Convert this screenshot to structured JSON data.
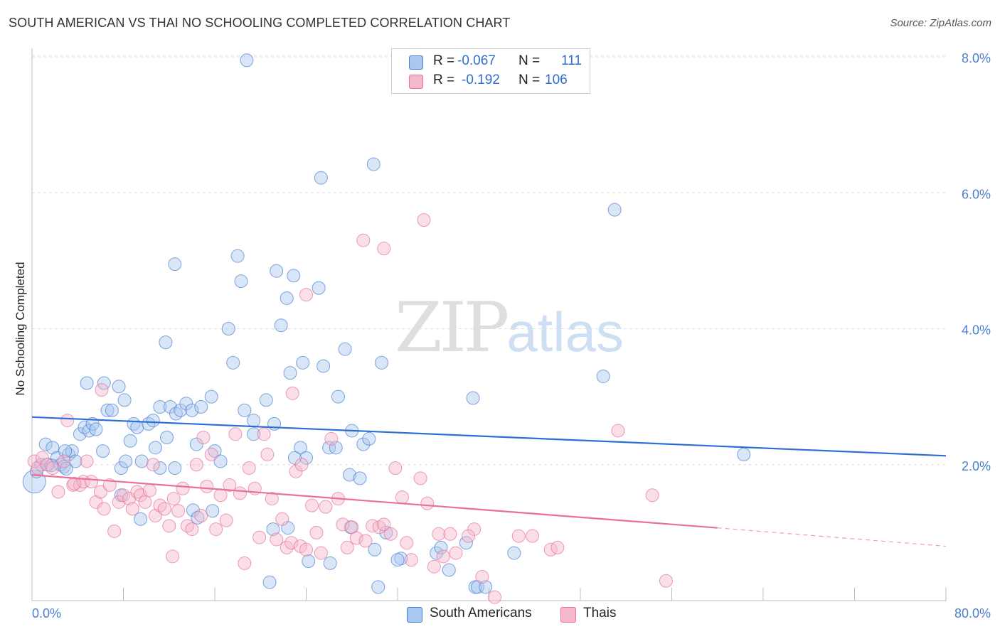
{
  "title": "SOUTH AMERICAN VS THAI NO SCHOOLING COMPLETED CORRELATION CHART",
  "source": "Source: ZipAtlas.com",
  "watermark": {
    "zip": "ZIP",
    "atlas": "atlas"
  },
  "colors": {
    "blue": "#4a7fd0",
    "blue_fill": "#a9c8ef",
    "blue_line": "#2d6fd0",
    "pink": "#e8709a",
    "pink_fill": "#f5b7cb",
    "pink_line": "#e8709a"
  },
  "legend": {
    "rows": [
      {
        "r_label": "R =",
        "r_value": "-0.067",
        "n_label": "N =",
        "n_value": "111"
      },
      {
        "r_label": "R =",
        "r_value": "-0.192",
        "n_label": "N =",
        "n_value": "106"
      }
    ]
  },
  "bottom_legend": {
    "blue": "South Americans",
    "pink": "Thais"
  },
  "chart_data": {
    "type": "scatter",
    "title": "SOUTH AMERICAN VS THAI NO SCHOOLING COMPLETED CORRELATION CHART",
    "xlabel": "",
    "ylabel": "No Schooling Completed",
    "xlim": [
      0,
      80
    ],
    "ylim": [
      0,
      8.0
    ],
    "x_tick_labels": [
      "0.0%",
      "80.0%"
    ],
    "y_ticks": [
      2.0,
      4.0,
      6.0,
      8.0
    ],
    "y_tick_labels": [
      "2.0%",
      "4.0%",
      "6.0%",
      "8.0%"
    ],
    "grid": true,
    "legend_position": "top-center",
    "series": [
      {
        "name": "South Americans",
        "color": "#a9c8ef",
        "trend": {
          "x": [
            0,
            80
          ],
          "y": [
            2.7,
            2.13
          ]
        },
        "points": [
          [
            0.2,
            1.75
          ],
          [
            0.4,
            1.9
          ],
          [
            0.8,
            2.0
          ],
          [
            1.2,
            2.3
          ],
          [
            1.4,
            2.0
          ],
          [
            1.8,
            2.25
          ],
          [
            2.2,
            2.1
          ],
          [
            2.5,
            2.0
          ],
          [
            2.8,
            1.97
          ],
          [
            3.2,
            2.15
          ],
          [
            3.5,
            2.2
          ],
          [
            3.8,
            2.05
          ],
          [
            4.2,
            2.45
          ],
          [
            4.6,
            2.55
          ],
          [
            5.0,
            2.5
          ],
          [
            5.3,
            2.6
          ],
          [
            5.6,
            2.52
          ],
          [
            6.2,
            2.2
          ],
          [
            4.8,
            3.2
          ],
          [
            6.3,
            3.2
          ],
          [
            6.6,
            2.8
          ],
          [
            7.0,
            2.8
          ],
          [
            7.6,
            3.15
          ],
          [
            8.1,
            2.95
          ],
          [
            8.6,
            2.35
          ],
          [
            8.9,
            2.6
          ],
          [
            9.2,
            2.55
          ],
          [
            9.6,
            2.05
          ],
          [
            10.2,
            2.6
          ],
          [
            10.6,
            2.65
          ],
          [
            10.8,
            2.25
          ],
          [
            11.2,
            2.85
          ],
          [
            11.8,
            2.4
          ],
          [
            12.1,
            2.85
          ],
          [
            12.6,
            2.75
          ],
          [
            13.0,
            2.8
          ],
          [
            13.5,
            2.9
          ],
          [
            14.0,
            2.8
          ],
          [
            14.4,
            2.3
          ],
          [
            14.8,
            2.85
          ],
          [
            15.7,
            3.0
          ],
          [
            16.0,
            2.2
          ],
          [
            16.5,
            2.05
          ],
          [
            11.2,
            1.95
          ],
          [
            7.8,
            1.95
          ],
          [
            12.5,
            4.95
          ],
          [
            11.7,
            3.8
          ],
          [
            17.2,
            4.0
          ],
          [
            17.6,
            3.5
          ],
          [
            18.6,
            2.8
          ],
          [
            19.4,
            2.65
          ],
          [
            18.3,
            4.7
          ],
          [
            18.0,
            5.07
          ],
          [
            19.4,
            2.45
          ],
          [
            20.5,
            2.95
          ],
          [
            21.2,
            2.6
          ],
          [
            21.8,
            4.05
          ],
          [
            21.4,
            4.85
          ],
          [
            22.3,
            4.45
          ],
          [
            22.6,
            3.35
          ],
          [
            22.9,
            4.78
          ],
          [
            23.5,
            2.25
          ],
          [
            23.7,
            3.5
          ],
          [
            24.0,
            2.1
          ],
          [
            25.1,
            4.6
          ],
          [
            25.5,
            3.45
          ],
          [
            26.0,
            2.25
          ],
          [
            26.6,
            2.25
          ],
          [
            26.8,
            3.0
          ],
          [
            27.4,
            3.7
          ],
          [
            27.8,
            1.85
          ],
          [
            28.0,
            2.5
          ],
          [
            28.7,
            1.8
          ],
          [
            29.0,
            2.3
          ],
          [
            29.5,
            2.38
          ],
          [
            30.6,
            3.5
          ],
          [
            18.8,
            7.95
          ],
          [
            25.3,
            6.22
          ],
          [
            29.9,
            6.42
          ],
          [
            31.0,
            1.0
          ],
          [
            30.0,
            0.75
          ],
          [
            30.3,
            0.2
          ],
          [
            32.3,
            0.62
          ],
          [
            35.4,
            0.7
          ],
          [
            35.8,
            0.78
          ],
          [
            36.5,
            0.45
          ],
          [
            38.0,
            0.85
          ],
          [
            38.8,
            0.2
          ],
          [
            39.0,
            0.2
          ],
          [
            39.7,
            0.2
          ],
          [
            42.2,
            0.7
          ],
          [
            21.1,
            1.05
          ],
          [
            22.4,
            1.07
          ],
          [
            15.8,
            1.32
          ],
          [
            14.1,
            1.33
          ],
          [
            14.5,
            1.22
          ],
          [
            12.5,
            1.95
          ],
          [
            9.5,
            1.2
          ],
          [
            7.8,
            1.55
          ],
          [
            38.6,
            2.98
          ],
          [
            50.0,
            3.3
          ],
          [
            51.0,
            5.75
          ],
          [
            62.3,
            2.15
          ],
          [
            20.8,
            0.27
          ],
          [
            24.2,
            0.58
          ],
          [
            26.1,
            0.55
          ],
          [
            32.0,
            0.6
          ],
          [
            23.0,
            2.1
          ],
          [
            27.9,
            1.08
          ],
          [
            3.0,
            1.94
          ],
          [
            1.7,
            1.99
          ],
          [
            2.9,
            2.2
          ],
          [
            8.2,
            2.05
          ]
        ]
      },
      {
        "name": "Thais",
        "color": "#f5b7cb",
        "trend": {
          "x": [
            0,
            60
          ],
          "y": [
            1.85,
            1.07
          ]
        },
        "trend_dashed": {
          "x": [
            60,
            80
          ],
          "y": [
            1.07,
            0.8
          ]
        },
        "points": [
          [
            0.2,
            2.05
          ],
          [
            0.5,
            1.95
          ],
          [
            0.9,
            2.1
          ],
          [
            1.3,
            2.0
          ],
          [
            1.8,
            1.95
          ],
          [
            2.3,
            1.6
          ],
          [
            2.8,
            2.05
          ],
          [
            3.1,
            2.65
          ],
          [
            3.6,
            1.7
          ],
          [
            4.2,
            1.7
          ],
          [
            4.5,
            1.75
          ],
          [
            4.8,
            2.05
          ],
          [
            5.2,
            1.75
          ],
          [
            5.6,
            1.45
          ],
          [
            6.0,
            1.6
          ],
          [
            6.3,
            1.35
          ],
          [
            6.8,
            1.7
          ],
          [
            7.2,
            1.02
          ],
          [
            7.6,
            1.45
          ],
          [
            8.0,
            1.55
          ],
          [
            8.5,
            1.5
          ],
          [
            8.8,
            1.35
          ],
          [
            9.2,
            1.6
          ],
          [
            9.5,
            1.55
          ],
          [
            9.9,
            1.45
          ],
          [
            10.3,
            1.62
          ],
          [
            10.8,
            1.25
          ],
          [
            11.2,
            1.4
          ],
          [
            11.6,
            1.35
          ],
          [
            12.0,
            1.1
          ],
          [
            12.4,
            1.5
          ],
          [
            12.8,
            1.32
          ],
          [
            13.2,
            1.65
          ],
          [
            13.6,
            1.1
          ],
          [
            14.0,
            1.05
          ],
          [
            14.4,
            2.0
          ],
          [
            14.8,
            1.25
          ],
          [
            15.3,
            1.68
          ],
          [
            15.7,
            2.15
          ],
          [
            16.1,
            1.05
          ],
          [
            16.5,
            1.55
          ],
          [
            17.0,
            1.18
          ],
          [
            17.3,
            1.7
          ],
          [
            17.8,
            2.45
          ],
          [
            18.2,
            1.58
          ],
          [
            18.6,
            0.55
          ],
          [
            19.0,
            1.95
          ],
          [
            19.5,
            1.65
          ],
          [
            19.9,
            0.93
          ],
          [
            20.3,
            2.45
          ],
          [
            20.6,
            2.15
          ],
          [
            21.0,
            1.5
          ],
          [
            21.4,
            0.9
          ],
          [
            21.9,
            1.2
          ],
          [
            22.3,
            0.78
          ],
          [
            22.7,
            0.85
          ],
          [
            23.1,
            1.9
          ],
          [
            23.5,
            0.8
          ],
          [
            24.0,
            0.75
          ],
          [
            24.5,
            1.4
          ],
          [
            24.9,
            1.0
          ],
          [
            25.3,
            0.7
          ],
          [
            25.7,
            1.38
          ],
          [
            26.2,
            2.38
          ],
          [
            26.8,
            1.5
          ],
          [
            27.2,
            1.12
          ],
          [
            27.6,
            0.78
          ],
          [
            28.0,
            1.08
          ],
          [
            28.4,
            0.92
          ],
          [
            29.2,
            0.88
          ],
          [
            29.8,
            1.1
          ],
          [
            30.4,
            1.08
          ],
          [
            30.8,
            1.12
          ],
          [
            31.4,
            0.98
          ],
          [
            31.8,
            1.95
          ],
          [
            32.4,
            1.52
          ],
          [
            32.8,
            0.85
          ],
          [
            33.2,
            0.6
          ],
          [
            34.0,
            1.8
          ],
          [
            34.6,
            1.43
          ],
          [
            35.2,
            0.5
          ],
          [
            35.6,
            0.98
          ],
          [
            36.0,
            0.65
          ],
          [
            36.6,
            0.98
          ],
          [
            37.1,
            0.7
          ],
          [
            38.7,
            1.05
          ],
          [
            39.4,
            0.35
          ],
          [
            40.5,
            0.05
          ],
          [
            42.6,
            0.95
          ],
          [
            43.8,
            0.95
          ],
          [
            45.4,
            0.75
          ],
          [
            46.0,
            0.78
          ],
          [
            51.3,
            2.5
          ],
          [
            54.3,
            1.55
          ],
          [
            55.5,
            0.29
          ],
          [
            6.1,
            3.1
          ],
          [
            22.8,
            3.05
          ],
          [
            24.0,
            4.5
          ],
          [
            29.0,
            5.3
          ],
          [
            30.8,
            5.18
          ],
          [
            34.3,
            5.6
          ],
          [
            38.2,
            0.95
          ],
          [
            10.6,
            2.0
          ],
          [
            12.3,
            0.65
          ],
          [
            3.7,
            1.72
          ],
          [
            15.0,
            2.4
          ],
          [
            23.6,
            2.0
          ]
        ]
      }
    ]
  }
}
